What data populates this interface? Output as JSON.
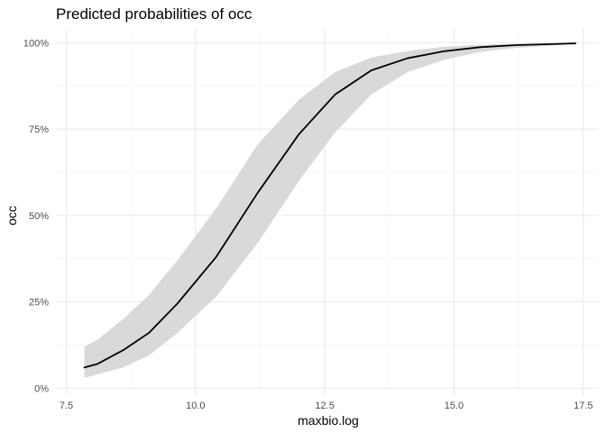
{
  "chart_data": {
    "type": "line",
    "title": "Predicted probabilities of occ",
    "xlabel": "maxbio.log",
    "ylabel": "occ",
    "xlim": [
      7.3,
      17.8
    ],
    "ylim": [
      -0.02,
      1.04
    ],
    "x_ticks": [
      7.5,
      10.0,
      12.5,
      15.0,
      17.5
    ],
    "x_tick_labels": [
      "7.5",
      "10.0",
      "12.5",
      "15.0",
      "17.5"
    ],
    "y_ticks": [
      0,
      0.25,
      0.5,
      0.75,
      1.0
    ],
    "y_tick_labels": [
      "0%",
      "25%",
      "50%",
      "75%",
      "100%"
    ],
    "grid": true,
    "colors": {
      "line": "#000000",
      "ribbon": "#d9d9d9",
      "grid_major": "#ebebeb",
      "grid_minor": "#f5f5f5"
    },
    "series": [
      {
        "x": [
          7.85,
          8.1,
          8.6,
          9.1,
          9.65,
          10.4,
          11.2,
          12.0,
          12.7,
          13.4,
          14.1,
          14.8,
          15.5,
          16.2,
          16.9,
          17.35
        ],
        "y": [
          0.06,
          0.07,
          0.11,
          0.16,
          0.245,
          0.38,
          0.565,
          0.735,
          0.85,
          0.92,
          0.955,
          0.975,
          0.987,
          0.993,
          0.996,
          0.998
        ],
        "lower": [
          0.03,
          0.04,
          0.06,
          0.095,
          0.16,
          0.265,
          0.42,
          0.6,
          0.74,
          0.85,
          0.915,
          0.95,
          0.973,
          0.985,
          0.992,
          0.995
        ],
        "upper": [
          0.12,
          0.14,
          0.2,
          0.27,
          0.37,
          0.52,
          0.705,
          0.835,
          0.915,
          0.957,
          0.976,
          0.988,
          0.994,
          0.997,
          0.998,
          0.999
        ]
      }
    ]
  }
}
